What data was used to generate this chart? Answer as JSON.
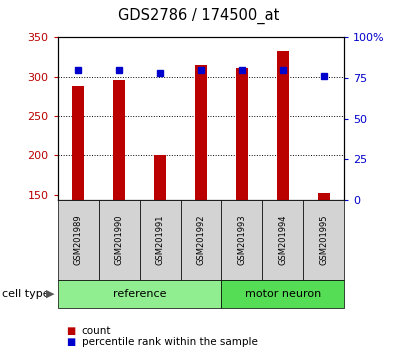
{
  "title": "GDS2786 / 174500_at",
  "samples": [
    "GSM201989",
    "GSM201990",
    "GSM201991",
    "GSM201992",
    "GSM201993",
    "GSM201994",
    "GSM201995"
  ],
  "counts": [
    288,
    296,
    200,
    315,
    311,
    333,
    152
  ],
  "percentile_ranks": [
    80,
    80,
    78,
    80,
    80,
    80,
    76
  ],
  "count_color": "#BB0000",
  "percentile_color": "#0000CC",
  "bar_bottom": 143,
  "ylim_left": [
    143,
    350
  ],
  "ylim_right": [
    0,
    100
  ],
  "yticks_left": [
    150,
    200,
    250,
    300,
    350
  ],
  "yticks_right": [
    0,
    25,
    50,
    75,
    100
  ],
  "grid_values": [
    200,
    250,
    300
  ],
  "group_ref_color": "#90EE90",
  "group_motor_color": "#55DD55",
  "bar_width": 0.3,
  "marker_size": 5
}
